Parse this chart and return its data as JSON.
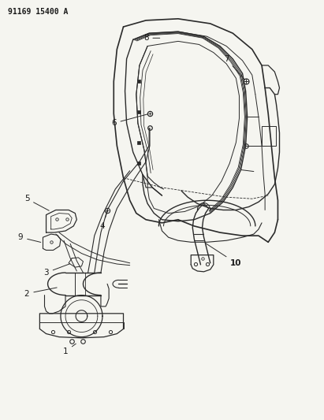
{
  "title": "91169 15400 A",
  "background_color": "#f5f5f0",
  "line_color": "#2a2a2a",
  "label_color": "#1a1a1a",
  "figsize": [
    4.11,
    5.33
  ],
  "dpi": 100
}
